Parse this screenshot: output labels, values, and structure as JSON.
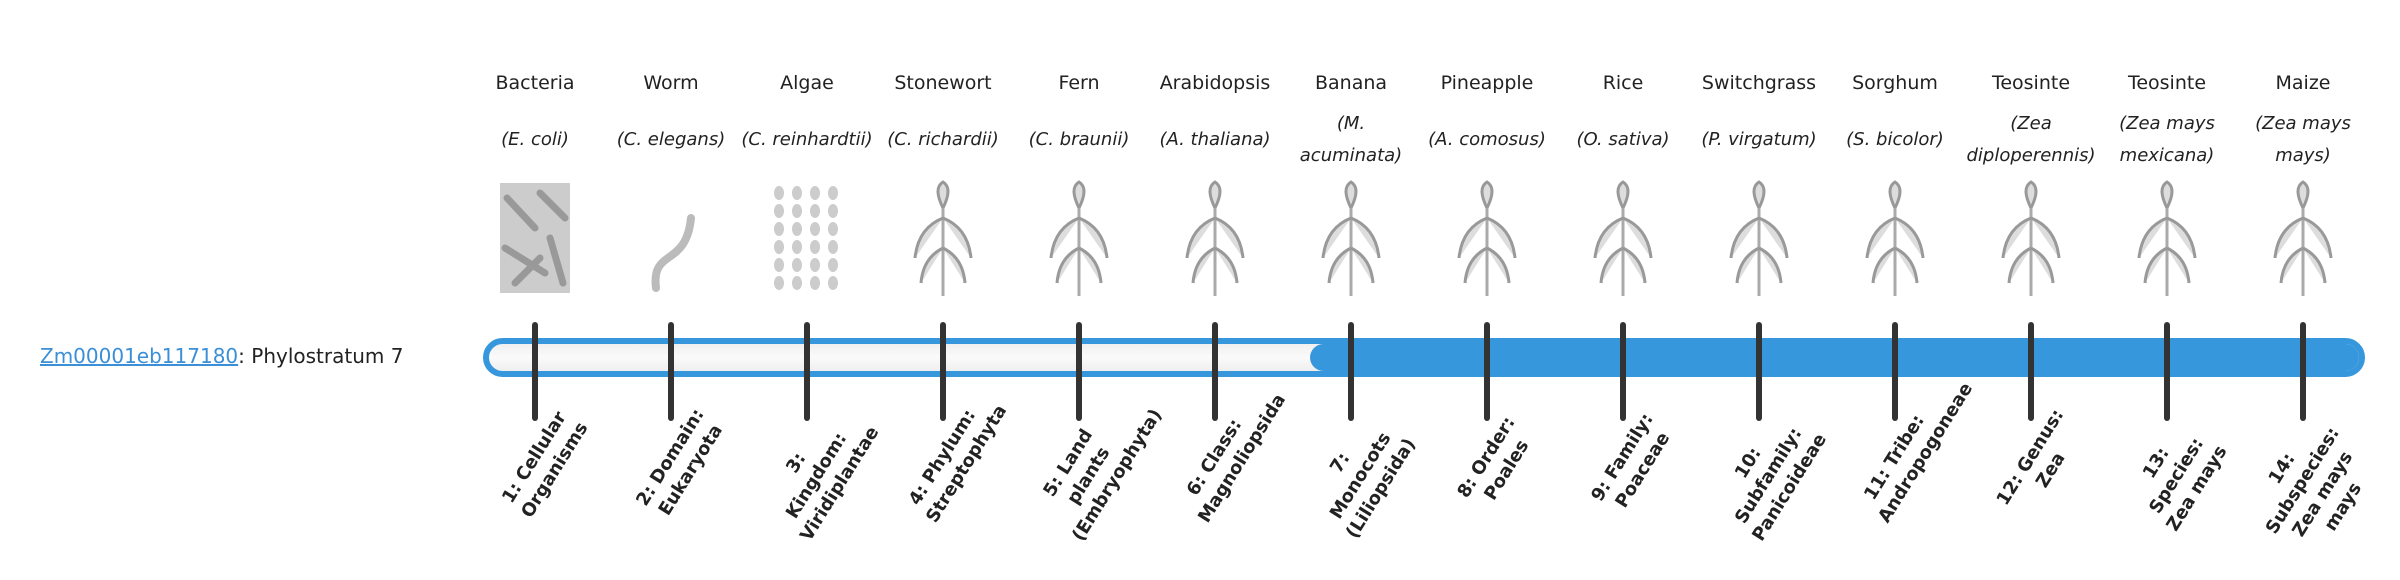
{
  "gene": {
    "id": "Zm00001eb117180",
    "separator": ": ",
    "phylostratum": "Phylostratum 7"
  },
  "colors": {
    "bar": "#3797dc",
    "link": "#3a8fd6",
    "tick": "#333333"
  },
  "assigned_stratum": 7,
  "organisms": [
    {
      "common": "Bacteria",
      "species": "(E. coli)",
      "icon": "bacteria-icon"
    },
    {
      "common": "Worm",
      "species": "(C. elegans)",
      "icon": "worm-icon"
    },
    {
      "common": "Algae",
      "species": "(C. reinhardtii)",
      "icon": "algae-icon"
    },
    {
      "common": "Stonewort",
      "species": "(C. richardii)",
      "icon": "stonewort-icon"
    },
    {
      "common": "Fern",
      "species": "(C. braunii)",
      "icon": "fern-icon"
    },
    {
      "common": "Arabidopsis",
      "species": "(A. thaliana)",
      "icon": "arabidopsis-icon"
    },
    {
      "common": "Banana",
      "species": "(M. acuminata)",
      "icon": "banana-icon"
    },
    {
      "common": "Pineapple",
      "species": "(A. comosus)",
      "icon": "pineapple-icon"
    },
    {
      "common": "Rice",
      "species": "(O. sativa)",
      "icon": "rice-icon"
    },
    {
      "common": "Switchgrass",
      "species": "(P. virgatum)",
      "icon": "switchgrass-icon"
    },
    {
      "common": "Sorghum",
      "species": "(S. bicolor)",
      "icon": "sorghum-icon"
    },
    {
      "common": "Teosinte",
      "species": "(Zea diploperennis)",
      "icon": "teosinte-icon"
    },
    {
      "common": "Teosinte",
      "species": "(Zea mays mexicana)",
      "icon": "teosinte-icon"
    },
    {
      "common": "Maize",
      "species": "(Zea mays mays)",
      "icon": "maize-icon"
    }
  ],
  "strata": [
    "1: Cellular Organisms",
    "2: Domain: Eukaryota",
    "3: Kingdom: Viridiplantae",
    "4: Phylum: Streptophyta",
    "5: Land plants (Embryophyta)",
    "6: Class: Magnoliopsida",
    "7: Monocots (Liliopsida)",
    "8: Order: Poales",
    "9: Family: Poaceae",
    "10: Subfamily: Panicoideae",
    "11: Tribe: Andropogoneae",
    "12: Genus: Zea",
    "13: Species: Zea mays",
    "14: Subspecies: Zea mays mays"
  ]
}
